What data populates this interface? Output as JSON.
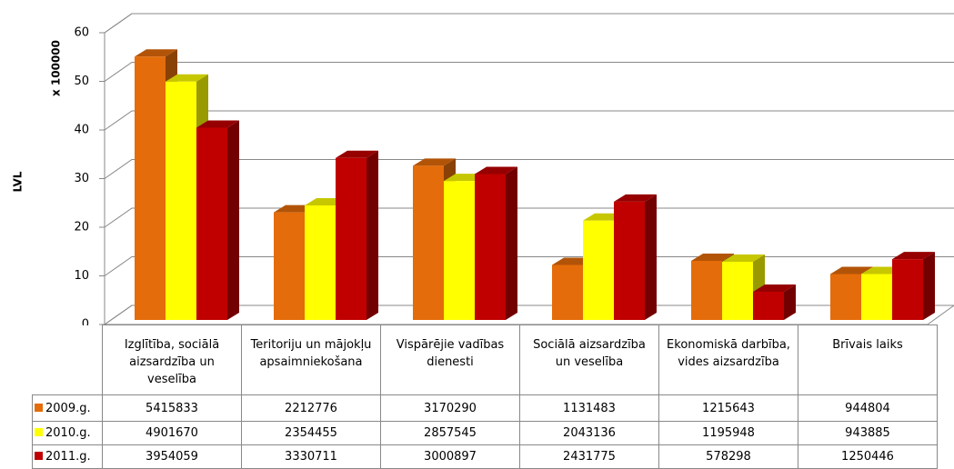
{
  "chart_data": {
    "type": "bar",
    "ylabel": "LVL",
    "yunit": "x 100000",
    "categories": [
      "Izglītība, sociālā aizsardzība un veselība",
      "Teritoriju un mājokļu apsaimniekošana",
      "Vispārējie vadības dienesti",
      "Sociālā aizsardzība un veselība",
      "Ekonomiskā darbība, vides aizsardzība",
      "Brīvais laiks"
    ],
    "series": [
      {
        "name": "2009.g.",
        "color": "#e46c0a",
        "values": [
          54.15833,
          22.12776,
          31.7029,
          11.31483,
          12.15643,
          9.44804
        ],
        "value_labels": [
          "5415833",
          "2212776",
          "3170290",
          "1131483",
          "1215643",
          "944804"
        ]
      },
      {
        "name": "2010.g.",
        "color": "#ffff00",
        "values": [
          49.0167,
          23.54455,
          28.57545,
          20.43136,
          11.95948,
          9.43885
        ],
        "value_labels": [
          "4901670",
          "2354455",
          "2857545",
          "2043136",
          "1195948",
          "943885"
        ]
      },
      {
        "name": "2011.g.",
        "color": "#c00000",
        "values": [
          39.54059,
          33.30711,
          30.00897,
          24.31775,
          5.78298,
          12.50446
        ],
        "value_labels": [
          "3954059",
          "3330711",
          "3000897",
          "2431775",
          "578298",
          "1250446"
        ]
      }
    ],
    "ylim": [
      0,
      60
    ],
    "yticks": [
      0,
      10,
      20,
      30,
      40,
      50,
      60
    ],
    "grid": true
  }
}
